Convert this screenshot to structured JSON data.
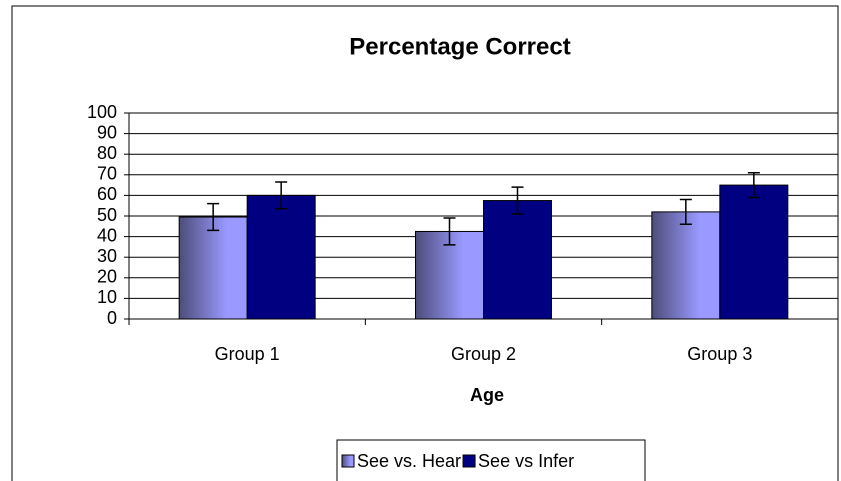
{
  "chart_data": {
    "type": "bar",
    "title": "Percentage Correct",
    "xlabel": "Age",
    "categories": [
      "Group 1",
      "Group 2",
      "Group 3"
    ],
    "series": [
      {
        "name": "See vs. Hear",
        "color": "#9999ff",
        "values": [
          49.5,
          42.5,
          52
        ],
        "errors": [
          6.5,
          6.5,
          6
        ]
      },
      {
        "name": "See vs Infer",
        "color": "#000080",
        "values": [
          60,
          57.5,
          65
        ],
        "errors": [
          6.5,
          6.5,
          6
        ]
      }
    ],
    "ylim": [
      0,
      100
    ],
    "yticks": [
      0,
      10,
      20,
      30,
      40,
      50,
      60,
      70,
      80,
      90,
      100
    ],
    "grid": true,
    "legend": "bottom"
  }
}
